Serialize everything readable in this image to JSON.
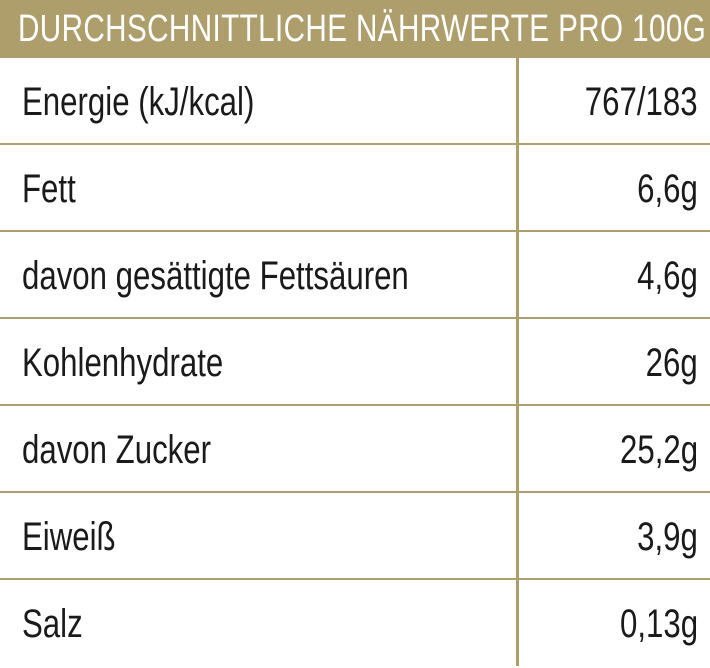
{
  "header": {
    "title": "DURCHSCHNITTLICHE NÄHRWERTE PRO 100G"
  },
  "rows": [
    {
      "label": "Energie (kJ/kcal)",
      "value": "767/183"
    },
    {
      "label": "Fett",
      "value": "6,6g"
    },
    {
      "label": "davon gesättigte Fettsäuren",
      "value": "4,6g"
    },
    {
      "label": "Kohlenhydrate",
      "value": "26g"
    },
    {
      "label": "davon Zucker",
      "value": "25,2g"
    },
    {
      "label": "Eiweiß",
      "value": "3,9g"
    },
    {
      "label": "Salz",
      "value": "0,13g"
    }
  ],
  "colors": {
    "accent": "#ad9e6c",
    "text": "#1a1a1a",
    "background": "#ffffff"
  }
}
